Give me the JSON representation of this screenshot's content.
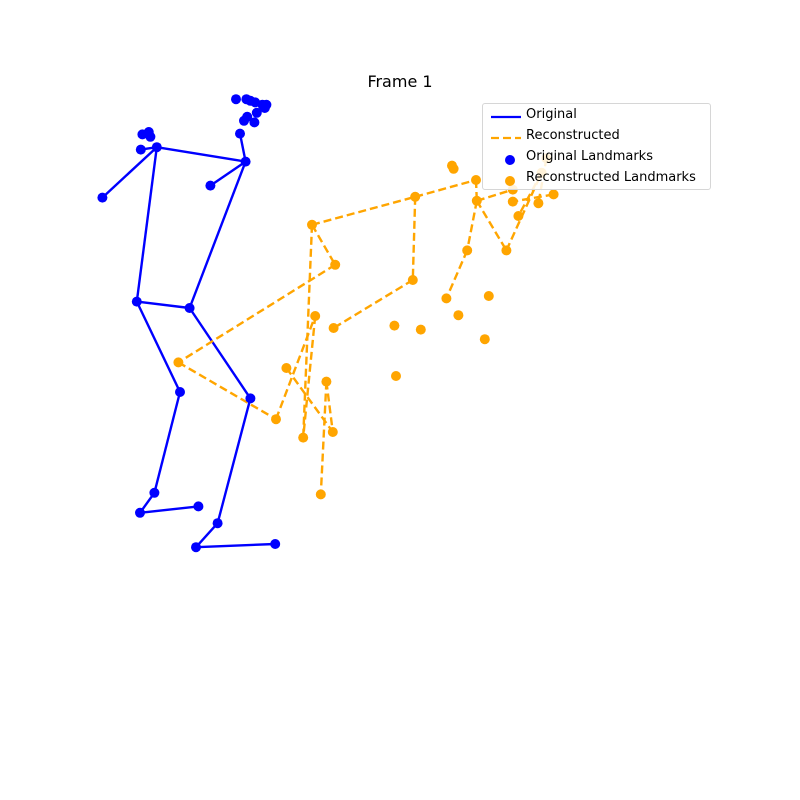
{
  "chart_data": {
    "type": "scatter",
    "title": "Frame 1",
    "xlabel": "",
    "ylabel": "",
    "axes_visible": false,
    "grid": false,
    "legend_position": "top-right",
    "colors": {
      "original": "#0000ff",
      "reconstructed": "#ffa500"
    },
    "legend": [
      {
        "label": "Original",
        "kind": "line-solid",
        "color": "#0000ff"
      },
      {
        "label": "Reconstructed",
        "kind": "line-dashed",
        "color": "#ffa500"
      },
      {
        "label": "Original Landmarks",
        "kind": "marker",
        "color": "#0000ff"
      },
      {
        "label": "Reconstructed Landmarks",
        "kind": "marker",
        "color": "#ffa500"
      }
    ],
    "series": [
      {
        "name": "Original Landmarks",
        "points": [
          [
            0.295,
            0.124
          ],
          [
            0.308,
            0.124
          ],
          [
            0.313,
            0.126
          ],
          [
            0.319,
            0.128
          ],
          [
            0.328,
            0.131
          ],
          [
            0.333,
            0.131
          ],
          [
            0.331,
            0.135
          ],
          [
            0.321,
            0.141
          ],
          [
            0.309,
            0.146
          ],
          [
            0.305,
            0.151
          ],
          [
            0.318,
            0.153
          ],
          [
            0.3,
            0.167
          ],
          [
            0.186,
            0.165
          ],
          [
            0.178,
            0.168
          ],
          [
            0.188,
            0.171
          ],
          [
            0.176,
            0.187
          ],
          [
            0.196,
            0.184
          ],
          [
            0.307,
            0.202
          ],
          [
            0.128,
            0.247
          ],
          [
            0.263,
            0.232
          ],
          [
            0.171,
            0.377
          ],
          [
            0.237,
            0.385
          ],
          [
            0.225,
            0.49
          ],
          [
            0.313,
            0.498
          ],
          [
            0.193,
            0.616
          ],
          [
            0.175,
            0.641
          ],
          [
            0.248,
            0.633
          ],
          [
            0.272,
            0.654
          ],
          [
            0.245,
            0.684
          ],
          [
            0.344,
            0.68
          ]
        ],
        "edges": [
          [
            16,
            17
          ],
          [
            16,
            15
          ],
          [
            16,
            18
          ],
          [
            17,
            19
          ],
          [
            17,
            11
          ],
          [
            16,
            20
          ],
          [
            17,
            21
          ],
          [
            20,
            21
          ],
          [
            20,
            22
          ],
          [
            21,
            23
          ],
          [
            22,
            24
          ],
          [
            24,
            25
          ],
          [
            25,
            26
          ],
          [
            23,
            27
          ],
          [
            27,
            28
          ],
          [
            28,
            29
          ]
        ]
      },
      {
        "name": "Reconstructed Landmarks",
        "points": [
          [
            0.565,
            0.207
          ],
          [
            0.567,
            0.211
          ],
          [
            0.595,
            0.225
          ],
          [
            0.683,
            0.198
          ],
          [
            0.677,
            0.216
          ],
          [
            0.641,
            0.237
          ],
          [
            0.641,
            0.252
          ],
          [
            0.673,
            0.254
          ],
          [
            0.692,
            0.243
          ],
          [
            0.648,
            0.27
          ],
          [
            0.596,
            0.251
          ],
          [
            0.519,
            0.246
          ],
          [
            0.39,
            0.281
          ],
          [
            0.419,
            0.331
          ],
          [
            0.584,
            0.313
          ],
          [
            0.633,
            0.313
          ],
          [
            0.516,
            0.35
          ],
          [
            0.558,
            0.373
          ],
          [
            0.611,
            0.37
          ],
          [
            0.573,
            0.394
          ],
          [
            0.394,
            0.395
          ],
          [
            0.417,
            0.41
          ],
          [
            0.493,
            0.407
          ],
          [
            0.526,
            0.412
          ],
          [
            0.606,
            0.424
          ],
          [
            0.223,
            0.453
          ],
          [
            0.358,
            0.46
          ],
          [
            0.495,
            0.47
          ],
          [
            0.408,
            0.477
          ],
          [
            0.345,
            0.524
          ],
          [
            0.416,
            0.54
          ],
          [
            0.379,
            0.547
          ],
          [
            0.401,
            0.618
          ]
        ],
        "edges": [
          [
            12,
            11
          ],
          [
            11,
            2
          ],
          [
            2,
            10
          ],
          [
            10,
            5
          ],
          [
            10,
            15
          ],
          [
            15,
            4
          ],
          [
            4,
            9
          ],
          [
            3,
            7
          ],
          [
            8,
            6
          ],
          [
            12,
            13
          ],
          [
            13,
            25
          ],
          [
            11,
            16
          ],
          [
            16,
            21
          ],
          [
            25,
            29
          ],
          [
            29,
            20
          ],
          [
            20,
            31
          ],
          [
            12,
            31
          ],
          [
            10,
            14
          ],
          [
            14,
            17
          ],
          [
            26,
            30
          ],
          [
            28,
            32
          ],
          [
            28,
            30
          ]
        ]
      }
    ]
  }
}
